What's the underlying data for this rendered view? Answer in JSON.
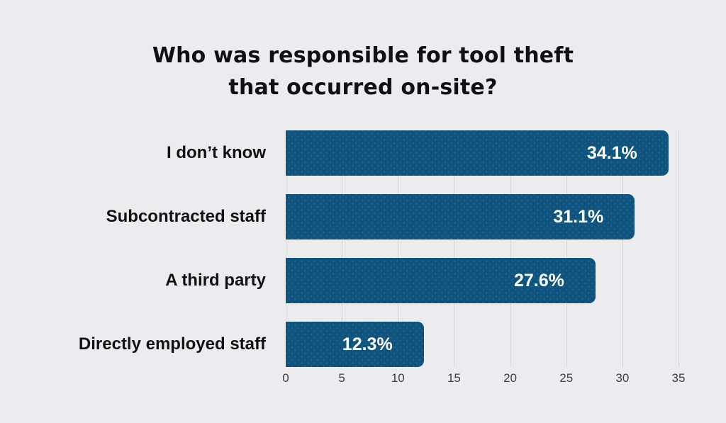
{
  "title": {
    "line1": "Who was responsible for tool theft",
    "line2": "that occurred on-site?"
  },
  "chart_data": {
    "type": "bar",
    "orientation": "horizontal",
    "title": "Who was responsible for tool theft that occurred on-site?",
    "categories": [
      "I don’t know",
      "Subcontracted staff",
      "A third party",
      "Directly employed staff"
    ],
    "values": [
      34.1,
      31.1,
      27.6,
      12.3
    ],
    "value_labels": [
      "34.1%",
      "31.1%",
      "27.6%",
      "12.3%"
    ],
    "xlabel": "",
    "ylabel": "",
    "xlim": [
      0,
      35
    ],
    "x_ticks": [
      0,
      5,
      10,
      15,
      20,
      25,
      30,
      35
    ],
    "x_tick_labels": [
      "0",
      "5",
      "10",
      "15",
      "20",
      "25",
      "30",
      "35"
    ],
    "grid": true,
    "legend": false,
    "colors": {
      "bar": "#0e547e",
      "background": "#ececee",
      "gridline": "#d6d6d9",
      "value_text": "#ffffff",
      "category_text": "#121214",
      "tick_text": "#3e3e42"
    }
  }
}
